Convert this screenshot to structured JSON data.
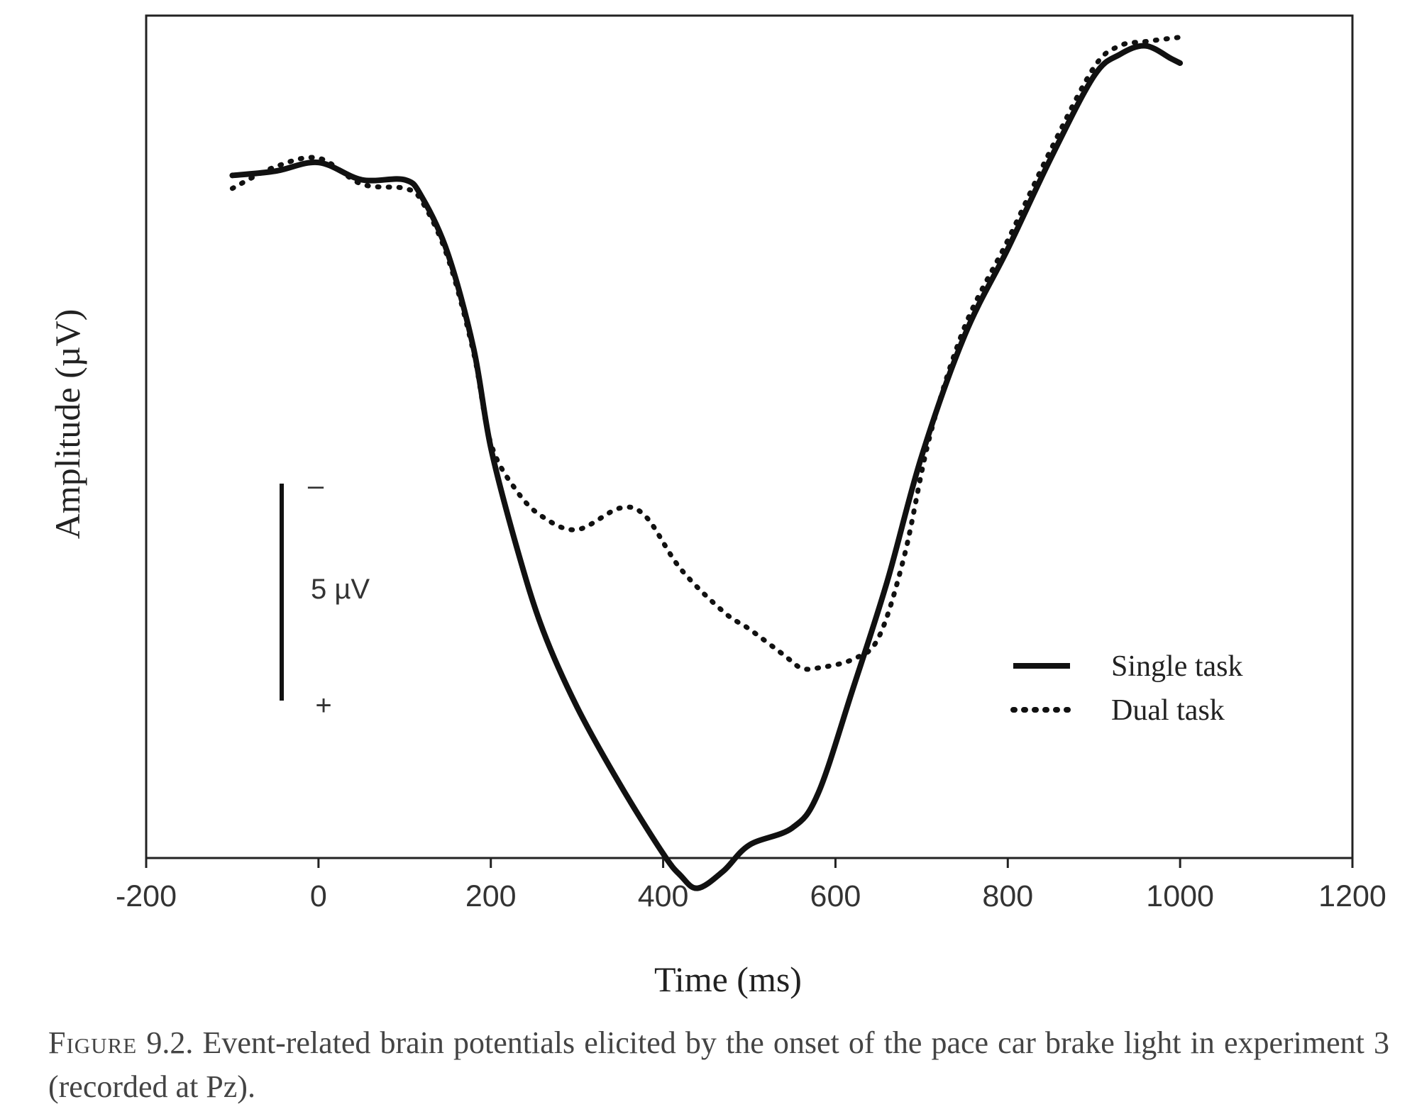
{
  "chart_data": {
    "type": "line",
    "title": "",
    "xlabel": "Time (ms)",
    "ylabel": "Amplitude (µV)",
    "x_ticks": [
      "-200",
      "0",
      "200",
      "400",
      "600",
      "800",
      "1000",
      "1200"
    ],
    "xlim": [
      -200,
      1200
    ],
    "y_unit": "µV",
    "y_orientation": "negative up",
    "ylim": [
      -16,
      3.5
    ],
    "y_ticks_shown": false,
    "grid": false,
    "legend": {
      "placement": "lower-right",
      "entries": [
        "Single task",
        "Dual task"
      ]
    },
    "scale_bar": {
      "label": "5 µV",
      "value": 5,
      "negative_sign": "–",
      "positive_sign": "+"
    },
    "series": [
      {
        "name": "Single task",
        "style": "solid",
        "x": [
          -100,
          -50,
          0,
          50,
          100,
          120,
          150,
          180,
          200,
          230,
          260,
          300,
          350,
          400,
          420,
          440,
          470,
          500,
          550,
          580,
          620,
          660,
          700,
          750,
          800,
          850,
          900,
          930,
          960,
          990,
          1000
        ],
        "y": [
          -12.3,
          -12.4,
          -12.6,
          -12.2,
          -12.2,
          -11.8,
          -10.5,
          -8.3,
          -6.0,
          -3.7,
          -1.8,
          0.0,
          1.8,
          3.4,
          3.9,
          4.2,
          3.8,
          3.2,
          2.8,
          2.0,
          -0.4,
          -2.9,
          -5.8,
          -8.6,
          -10.6,
          -12.7,
          -14.6,
          -15.1,
          -15.3,
          -15.0,
          -14.9
        ]
      },
      {
        "name": "Dual task",
        "style": "dotted",
        "x": [
          -100,
          -50,
          0,
          50,
          100,
          120,
          150,
          180,
          200,
          230,
          260,
          300,
          350,
          380,
          420,
          470,
          500,
          540,
          560,
          580,
          620,
          650,
          680,
          710,
          750,
          800,
          850,
          900,
          930,
          960,
          1000
        ],
        "y": [
          -12.0,
          -12.5,
          -12.7,
          -12.1,
          -12.0,
          -11.7,
          -10.4,
          -8.2,
          -6.1,
          -5.0,
          -4.4,
          -4.1,
          -4.6,
          -4.4,
          -3.2,
          -2.2,
          -1.8,
          -1.2,
          -0.9,
          -0.9,
          -1.1,
          -1.6,
          -3.5,
          -6.3,
          -8.8,
          -10.8,
          -12.9,
          -14.8,
          -15.3,
          -15.4,
          -15.5
        ]
      }
    ]
  },
  "caption": {
    "label": "Figure",
    "number": "9.2.",
    "text": "Event-related brain potentials elicited by the onset of the pace car brake light in experiment 3 (recorded at Pz)."
  },
  "colors": {
    "line": "#111111",
    "axis": "#222222",
    "text": "#333333",
    "background": "#ffffff"
  }
}
